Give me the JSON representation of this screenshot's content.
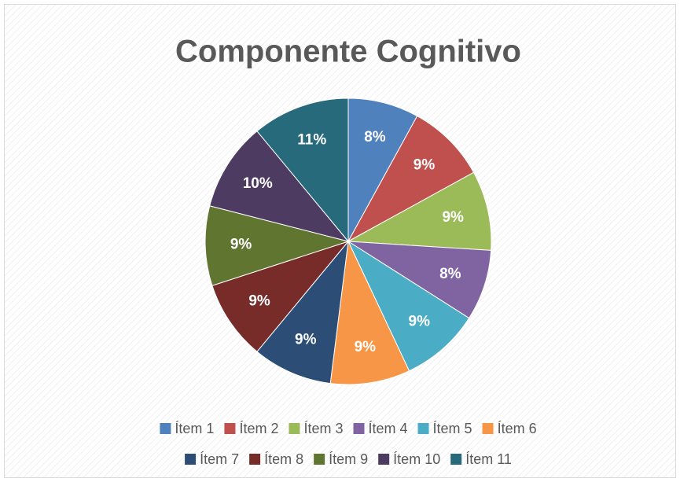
{
  "chart_data": {
    "type": "pie",
    "title": "Componente Cognitivo",
    "categories": [
      "Ítem 1",
      "Ítem 2",
      "Ítem 3",
      "Ítem 4",
      "Ítem 5",
      "Ítem 6",
      "Ítem 7",
      "Ítem 8",
      "Ítem 9",
      "Ítem 10",
      "Ítem 11"
    ],
    "values": [
      8,
      9,
      9,
      8,
      9,
      9,
      9,
      9,
      9,
      10,
      11
    ],
    "value_labels": [
      "8%",
      "9%",
      "9%",
      "8%",
      "9%",
      "9%",
      "9%",
      "9%",
      "9%",
      "10%",
      "11%"
    ],
    "colors": [
      "#4f81bd",
      "#c0504d",
      "#9bbb59",
      "#8064a2",
      "#4bacc6",
      "#f79646",
      "#2c4d75",
      "#772c2a",
      "#5f7530",
      "#4d3b62",
      "#276a7c"
    ],
    "legend": "bottom"
  }
}
